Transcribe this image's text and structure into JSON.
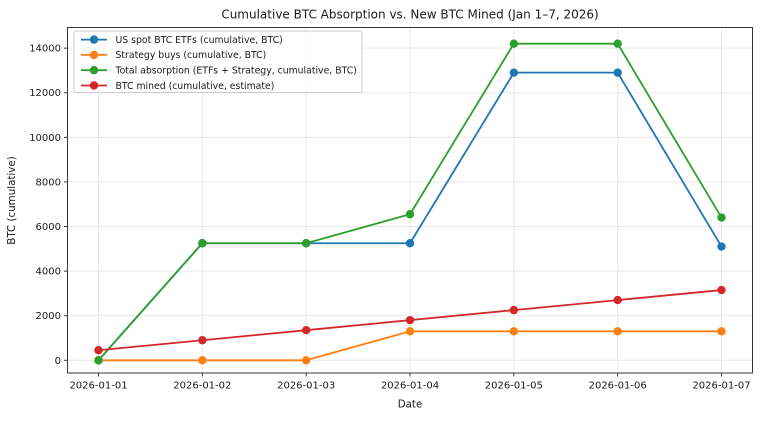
{
  "chart_data": {
    "type": "line",
    "title": "Cumulative BTC Absorption vs. New BTC Mined (Jan 1–7, 2026)",
    "xlabel": "Date",
    "ylabel": "BTC (cumulative)",
    "categories": [
      "2026-01-01",
      "2026-01-02",
      "2026-01-03",
      "2026-01-04",
      "2026-01-05",
      "2026-01-06",
      "2026-01-07"
    ],
    "series": [
      {
        "name": "US spot BTC ETFs (cumulative, BTC)",
        "color": "#1f77b4",
        "values": [
          0,
          5250,
          5250,
          5250,
          12900,
          12900,
          5100
        ]
      },
      {
        "name": "Strategy buys (cumulative, BTC)",
        "color": "#ff7f0e",
        "values": [
          0,
          0,
          0,
          1300,
          1300,
          1300,
          1300
        ]
      },
      {
        "name": "Total absorption (ETFs + Strategy, cumulative, BTC)",
        "color": "#2ca02c",
        "values": [
          0,
          5250,
          5250,
          6550,
          14200,
          14200,
          6400
        ]
      },
      {
        "name": "BTC mined (cumulative, estimate)",
        "color": "#d62728",
        "values": [
          450,
          900,
          1350,
          1800,
          2250,
          2700,
          3150
        ]
      }
    ],
    "yticks": [
      0,
      2000,
      4000,
      6000,
      8000,
      10000,
      12000,
      14000
    ],
    "ylim": [
      -570,
      14925
    ],
    "grid": true,
    "legend_position": "upper left",
    "marker": "circle"
  },
  "colors": {
    "background": "#ffffff",
    "grid": "#e9e9e9",
    "spine": "#363636",
    "tick": "#363636",
    "text": "#1a1a1a",
    "legend_border": "#cccccc",
    "legend_background": "#ffffff"
  }
}
